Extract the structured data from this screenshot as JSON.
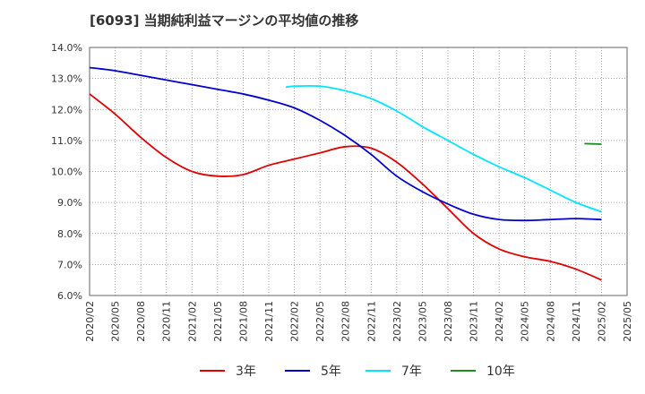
{
  "chart_data": {
    "type": "line",
    "title": "[6093]  当期純利益マージンの平均値の推移",
    "xlabel": "",
    "ylabel": "",
    "ylim": [
      6.0,
      14.0
    ],
    "y_ticks": [
      "6.0%",
      "7.0%",
      "8.0%",
      "9.0%",
      "10.0%",
      "11.0%",
      "12.0%",
      "13.0%",
      "14.0%"
    ],
    "x_ticks": [
      "2020/02",
      "2020/05",
      "2020/08",
      "2020/11",
      "2021/02",
      "2021/05",
      "2021/08",
      "2021/11",
      "2022/02",
      "2022/05",
      "2022/08",
      "2022/11",
      "2023/02",
      "2023/05",
      "2023/08",
      "2023/11",
      "2024/02",
      "2024/05",
      "2024/08",
      "2024/11",
      "2025/02",
      "2025/05"
    ],
    "grid": true,
    "legend_position": "bottom",
    "series": [
      {
        "name": "3年",
        "color": "#e00000",
        "points": [
          [
            "2020/02",
            12.5
          ],
          [
            "2020/05",
            11.85
          ],
          [
            "2020/08",
            11.1
          ],
          [
            "2020/11",
            10.45
          ],
          [
            "2021/02",
            10.0
          ],
          [
            "2021/05",
            9.85
          ],
          [
            "2021/08",
            9.9
          ],
          [
            "2021/11",
            10.2
          ],
          [
            "2022/02",
            10.4
          ],
          [
            "2022/05",
            10.6
          ],
          [
            "2022/08",
            10.8
          ],
          [
            "2022/11",
            10.75
          ],
          [
            "2023/02",
            10.3
          ],
          [
            "2023/05",
            9.6
          ],
          [
            "2023/08",
            8.8
          ],
          [
            "2023/11",
            8.0
          ],
          [
            "2024/02",
            7.5
          ],
          [
            "2024/05",
            7.25
          ],
          [
            "2024/08",
            7.1
          ],
          [
            "2024/11",
            6.85
          ],
          [
            "2025/02",
            6.5
          ]
        ]
      },
      {
        "name": "5年",
        "color": "#0000cc",
        "points": [
          [
            "2020/02",
            13.35
          ],
          [
            "2020/05",
            13.25
          ],
          [
            "2020/08",
            13.1
          ],
          [
            "2020/11",
            12.95
          ],
          [
            "2021/02",
            12.8
          ],
          [
            "2021/05",
            12.65
          ],
          [
            "2021/08",
            12.5
          ],
          [
            "2021/11",
            12.3
          ],
          [
            "2022/02",
            12.05
          ],
          [
            "2022/05",
            11.65
          ],
          [
            "2022/08",
            11.15
          ],
          [
            "2022/11",
            10.55
          ],
          [
            "2023/02",
            9.85
          ],
          [
            "2023/05",
            9.35
          ],
          [
            "2023/08",
            8.95
          ],
          [
            "2023/11",
            8.62
          ],
          [
            "2024/02",
            8.45
          ],
          [
            "2024/05",
            8.42
          ],
          [
            "2024/08",
            8.45
          ],
          [
            "2024/11",
            8.48
          ],
          [
            "2025/02",
            8.45
          ]
        ]
      },
      {
        "name": "7年",
        "color": "#00e5ff",
        "points": [
          [
            "2022/01",
            12.72
          ],
          [
            "2022/02",
            12.75
          ],
          [
            "2022/05",
            12.75
          ],
          [
            "2022/08",
            12.6
          ],
          [
            "2022/11",
            12.35
          ],
          [
            "2023/02",
            11.95
          ],
          [
            "2023/05",
            11.45
          ],
          [
            "2023/08",
            11.0
          ],
          [
            "2023/11",
            10.55
          ],
          [
            "2024/02",
            10.15
          ],
          [
            "2024/05",
            9.8
          ],
          [
            "2024/08",
            9.4
          ],
          [
            "2024/11",
            9.0
          ],
          [
            "2025/02",
            8.7
          ]
        ]
      },
      {
        "name": "10年",
        "color": "#228b22",
        "points": [
          [
            "2024/12",
            10.9
          ],
          [
            "2025/02",
            10.88
          ]
        ]
      }
    ]
  }
}
